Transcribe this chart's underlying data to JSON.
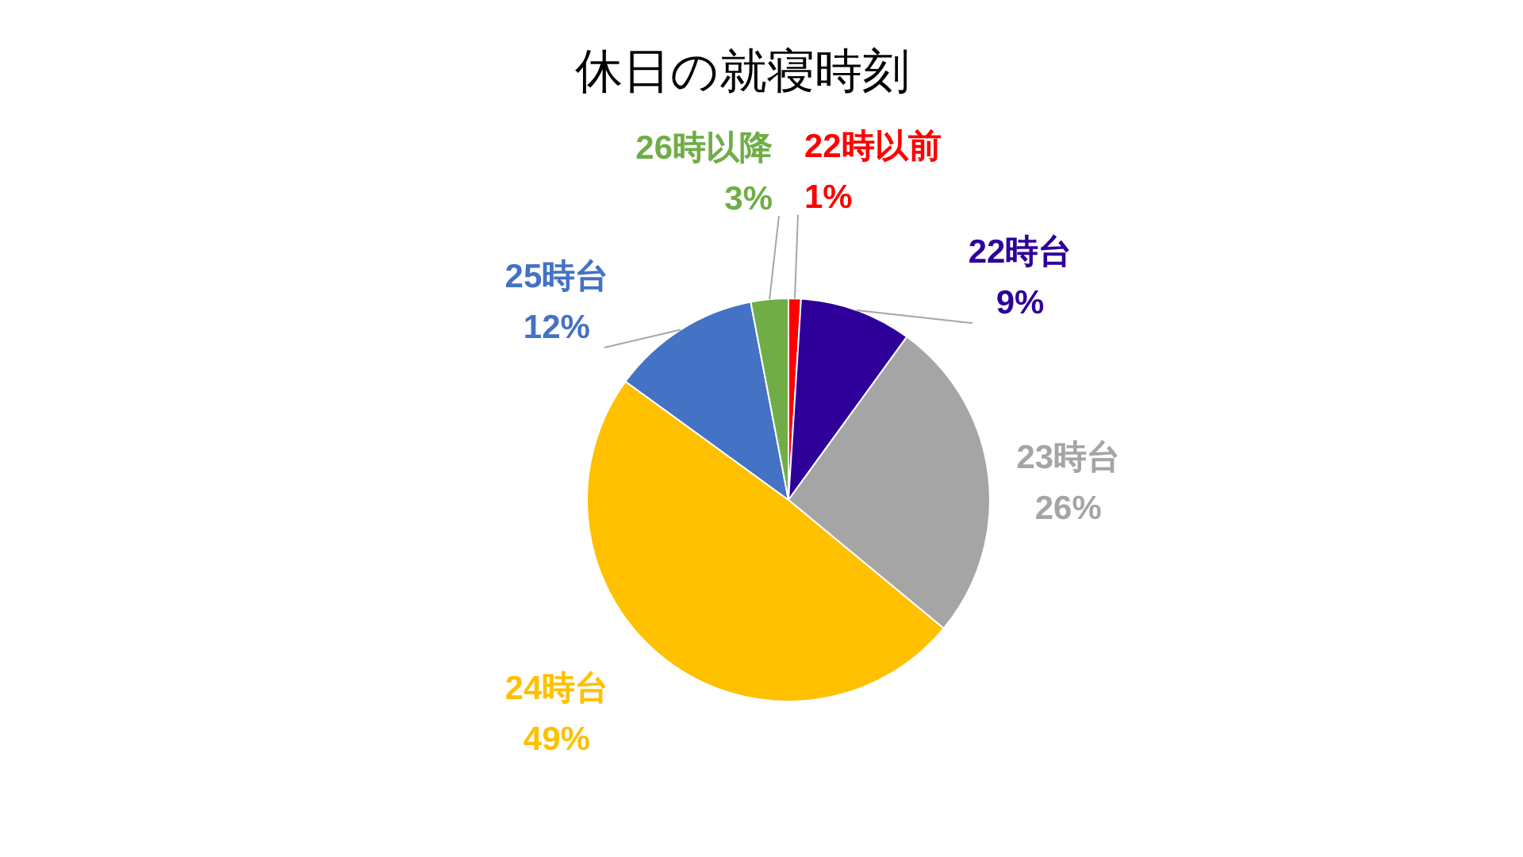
{
  "chart_data": {
    "type": "pie",
    "title": "休日の就寝時刻",
    "categories": [
      "22時以前",
      "22時台",
      "23時台",
      "24時台",
      "25時台",
      "26時以降"
    ],
    "values": [
      1,
      9,
      26,
      49,
      12,
      3
    ],
    "value_labels": [
      "1%",
      "9%",
      "26%",
      "49%",
      "12%",
      "3%"
    ],
    "colors": [
      "#ff0000",
      "#2e0099",
      "#a5a5a5",
      "#ffc000",
      "#4472c4",
      "#70ad47"
    ],
    "legend": false
  }
}
